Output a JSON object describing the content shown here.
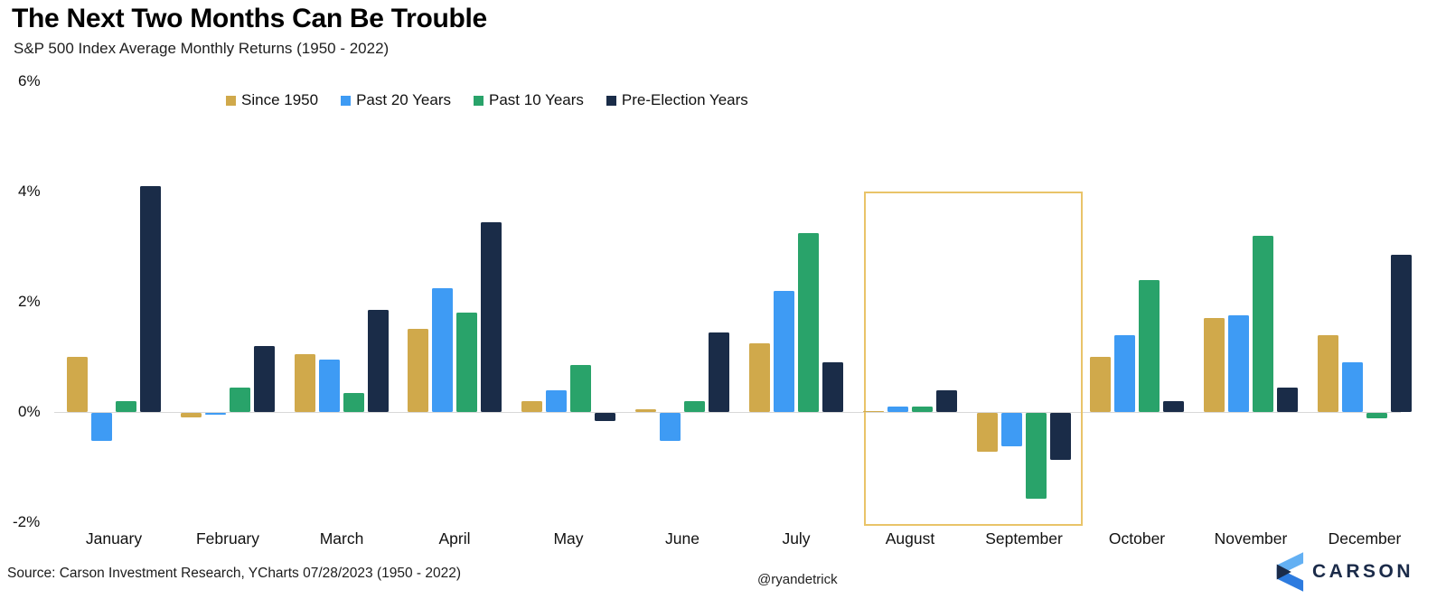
{
  "title": "The Next Two Months Can Be Trouble",
  "subtitle": "S&P 500 Index Average Monthly Returns (1950 - 2022)",
  "source_note": "Source: Carson Investment Research, YCharts 07/28/2023 (1950 - 2022)",
  "author_handle": "@ryandetrick",
  "brand": {
    "wordmark": "CARSON",
    "icon": "carson-chevron-icon",
    "navy": "#1b2b49",
    "blue_light": "#63b0f3",
    "blue_dark": "#2d7bdf"
  },
  "colors": {
    "axis_line": "#d8d8d8",
    "highlight_border": "#e9c469",
    "title_text": "#000000",
    "body_text": "#1f1f1f"
  },
  "chart_data": {
    "type": "bar",
    "title": "The Next Two Months Can Be Trouble",
    "subtitle": "S&P 500 Index Average Monthly Returns (1950 - 2022)",
    "categories": [
      "January",
      "February",
      "March",
      "April",
      "May",
      "June",
      "July",
      "August",
      "September",
      "October",
      "November",
      "December"
    ],
    "series": [
      {
        "name": "Since 1950",
        "color": "#d0a94b",
        "values": [
          1.0,
          -0.08,
          1.05,
          1.5,
          0.2,
          0.05,
          1.25,
          0.0,
          -0.7,
          1.0,
          1.7,
          1.4
        ]
      },
      {
        "name": "Past 20 Years",
        "color": "#3e9bf4",
        "values": [
          -0.5,
          -0.04,
          0.95,
          2.25,
          0.4,
          -0.5,
          2.2,
          0.1,
          -0.6,
          1.4,
          1.75,
          0.9
        ]
      },
      {
        "name": "Past 10 Years",
        "color": "#29a36a",
        "values": [
          0.2,
          0.45,
          0.35,
          1.8,
          0.85,
          0.2,
          3.25,
          0.1,
          -1.55,
          2.4,
          3.2,
          -0.1
        ]
      },
      {
        "name": "Pre-Election Years",
        "color": "#1a2c48",
        "values": [
          4.1,
          1.2,
          1.85,
          3.45,
          -0.15,
          1.45,
          0.9,
          0.4,
          -0.85,
          0.2,
          0.45,
          2.85
        ]
      }
    ],
    "ylabel": "",
    "xlabel": "",
    "ylim": [
      -2,
      6
    ],
    "yticks_percent": [
      6,
      4,
      2,
      0,
      -2
    ],
    "ytick_labels": [
      "6%",
      "4%",
      "2%",
      "0%",
      "-2%"
    ],
    "grid": false,
    "legend_position": "top",
    "highlight": {
      "categories": [
        "August",
        "September"
      ],
      "style": "gold outline rectangle"
    }
  }
}
